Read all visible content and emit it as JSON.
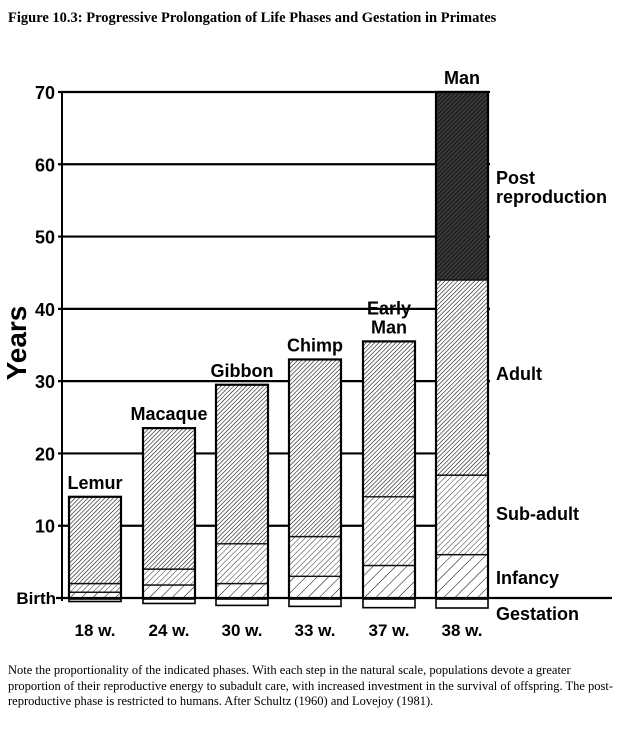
{
  "figure_title": "Figure 10.3: Progressive Prolongation of Life Phases and Gestation in Primates",
  "caption": "Note the proportionality of the indicated phases. With each step in the natural scale, populations devote a greater proportion of their reproductive energy to subadult care, with increased investment in the survival of offspring. The post-reproductive phase is restricted to humans. After Schultz (1960) and Lovejoy (1981).",
  "chart_data": {
    "type": "bar",
    "stacked": true,
    "ylabel": "Years",
    "ylim": [
      0,
      70
    ],
    "yticks": [
      "10",
      "20",
      "30",
      "40",
      "50",
      "60",
      "70"
    ],
    "birth_label": "Birth",
    "grid": true,
    "categories": [
      "Lemur",
      "Macaque",
      "Gibbon",
      "Chimp",
      "Early Man",
      "Man"
    ],
    "category_labels": [
      "Lemur",
      "Macaque",
      "Gibbon",
      "Chimp",
      "Early\nMan",
      "Man"
    ],
    "gestation_labels": [
      "18 w.",
      "24 w.",
      "30 w.",
      "33 w.",
      "37 w.",
      "38 w."
    ],
    "gestation_weeks": [
      18,
      24,
      30,
      33,
      37,
      38
    ],
    "phase_labels": [
      "Post reproduction",
      "Adult",
      "Sub-adult",
      "Infancy",
      "Gestation"
    ],
    "series": [
      {
        "name": "Infancy",
        "values": [
          0.8,
          1.8,
          2.0,
          3.0,
          4.5,
          6.0
        ]
      },
      {
        "name": "Sub-adult",
        "values": [
          1.2,
          2.2,
          5.5,
          5.5,
          9.5,
          11.0
        ]
      },
      {
        "name": "Adult",
        "values": [
          12.0,
          19.5,
          22.0,
          24.5,
          21.5,
          27.0
        ]
      },
      {
        "name": "Post reproduction",
        "values": [
          0,
          0,
          0,
          0,
          0,
          26.0
        ]
      }
    ],
    "colors": {
      "ink": "#000000",
      "bar_outline": "#111111"
    }
  }
}
